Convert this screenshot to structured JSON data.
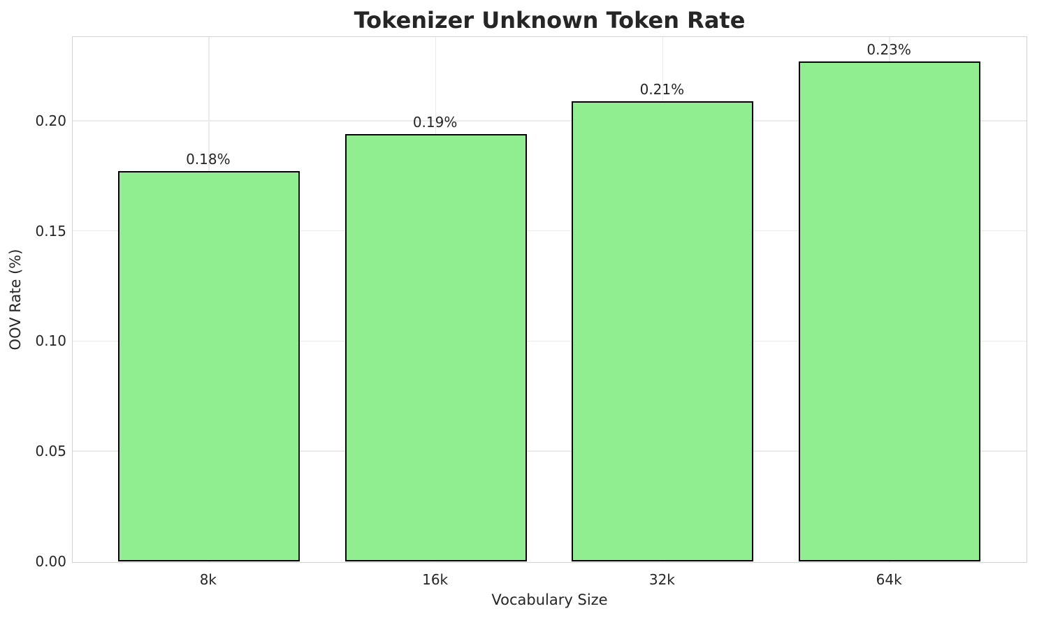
{
  "chart_data": {
    "type": "bar",
    "title": "Tokenizer Unknown Token Rate",
    "xlabel": "Vocabulary Size",
    "ylabel": "OOV Rate (%)",
    "categories": [
      "8k",
      "16k",
      "32k",
      "64k"
    ],
    "values": [
      0.177,
      0.194,
      0.209,
      0.227
    ],
    "bar_labels": [
      "0.18%",
      "0.19%",
      "0.21%",
      "0.23%"
    ],
    "series": [
      {
        "name": "OOV Rate",
        "values": [
          0.177,
          0.194,
          0.209,
          0.227
        ]
      }
    ],
    "yticks": [
      0.0,
      0.05,
      0.1,
      0.15,
      0.2
    ],
    "ytick_labels": [
      "0.00",
      "0.05",
      "0.10",
      "0.15",
      "0.20"
    ],
    "ylim": [
      0,
      0.238
    ],
    "grid": true,
    "legend_position": "none",
    "bar_color": "#90EE90",
    "bar_edge_color": "#000000",
    "grid_color": "#ebebeb",
    "spine_color": "#d2d2d2",
    "text_color": "#262626",
    "background_color": "#ffffff"
  }
}
